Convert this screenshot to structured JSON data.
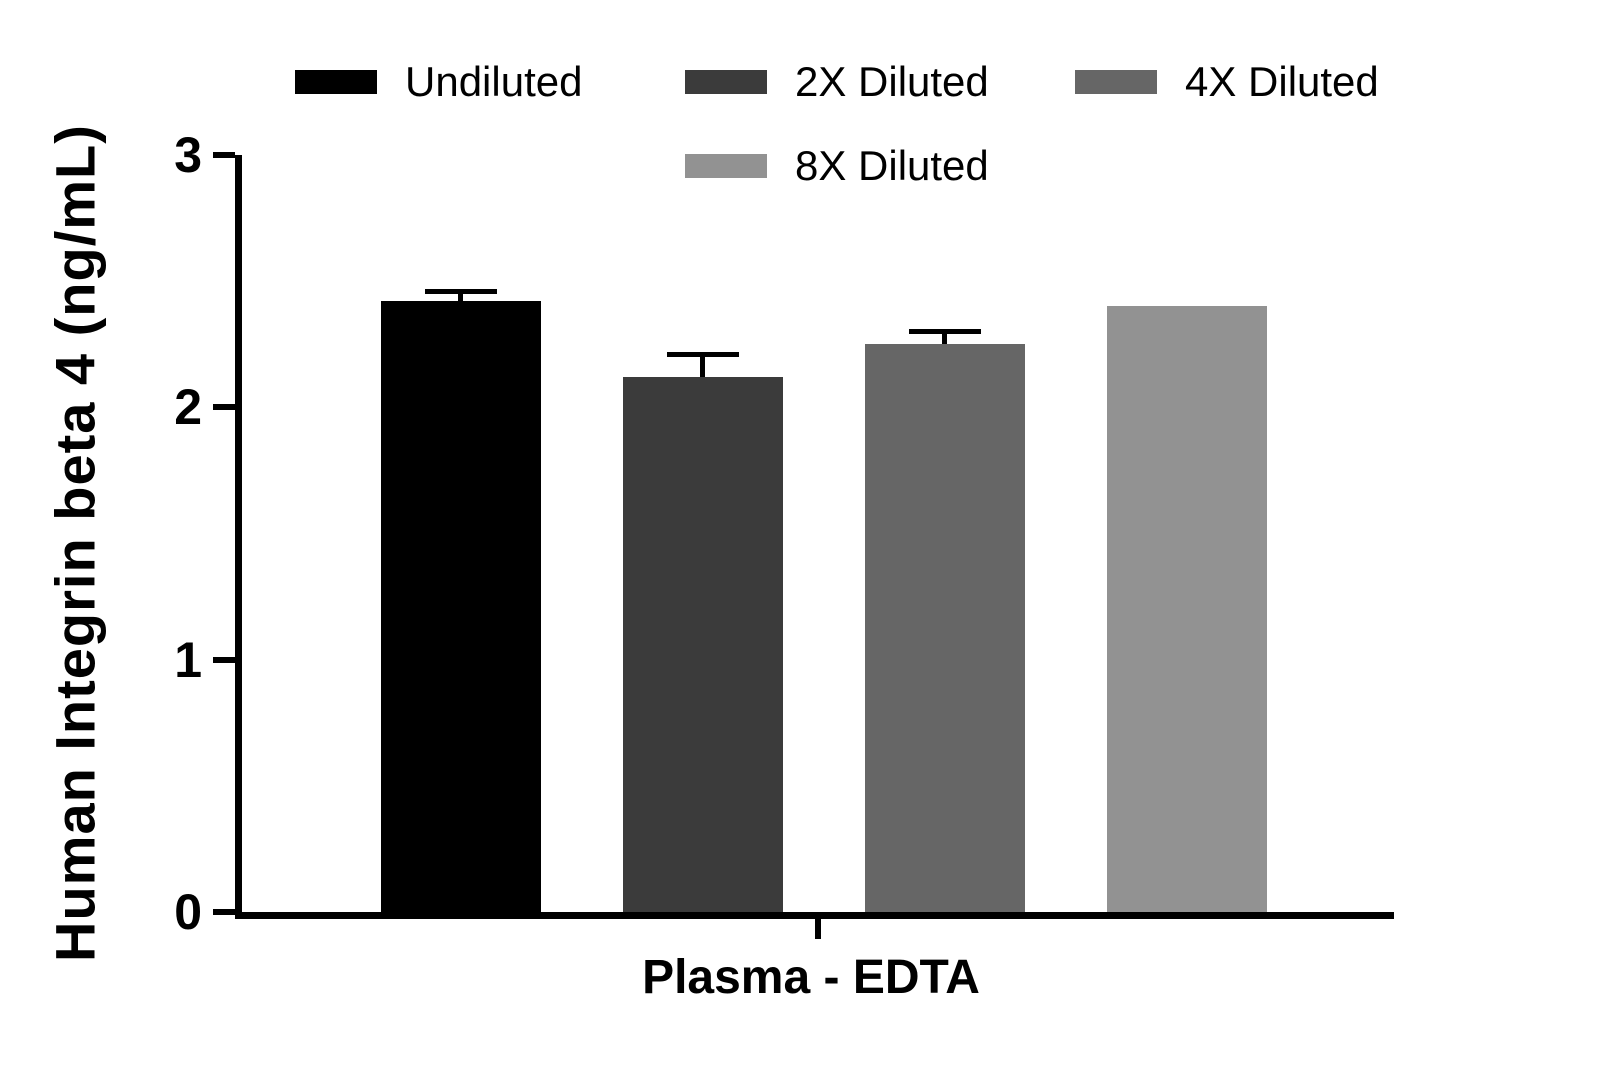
{
  "chart_data": {
    "type": "bar",
    "title": "",
    "ylabel": "Human Integrin beta 4 (ng/mL)",
    "xlabel": "Plasma - EDTA",
    "ylim": [
      0,
      3
    ],
    "yticks": [
      0,
      1,
      2,
      3
    ],
    "x_categories": [
      "Plasma - EDTA"
    ],
    "grid": false,
    "legend_position": "top",
    "series": [
      {
        "name": "Undiluted",
        "value": 2.42,
        "error": 0.03,
        "color": "#000000"
      },
      {
        "name": "2X Diluted",
        "value": 2.12,
        "error": 0.08,
        "color": "#3b3b3b"
      },
      {
        "name": "4X Diluted",
        "value": 2.25,
        "error": 0.04,
        "color": "#666666"
      },
      {
        "name": "8X Diluted",
        "value": 2.4,
        "error": 0,
        "color": "#929292"
      }
    ]
  }
}
